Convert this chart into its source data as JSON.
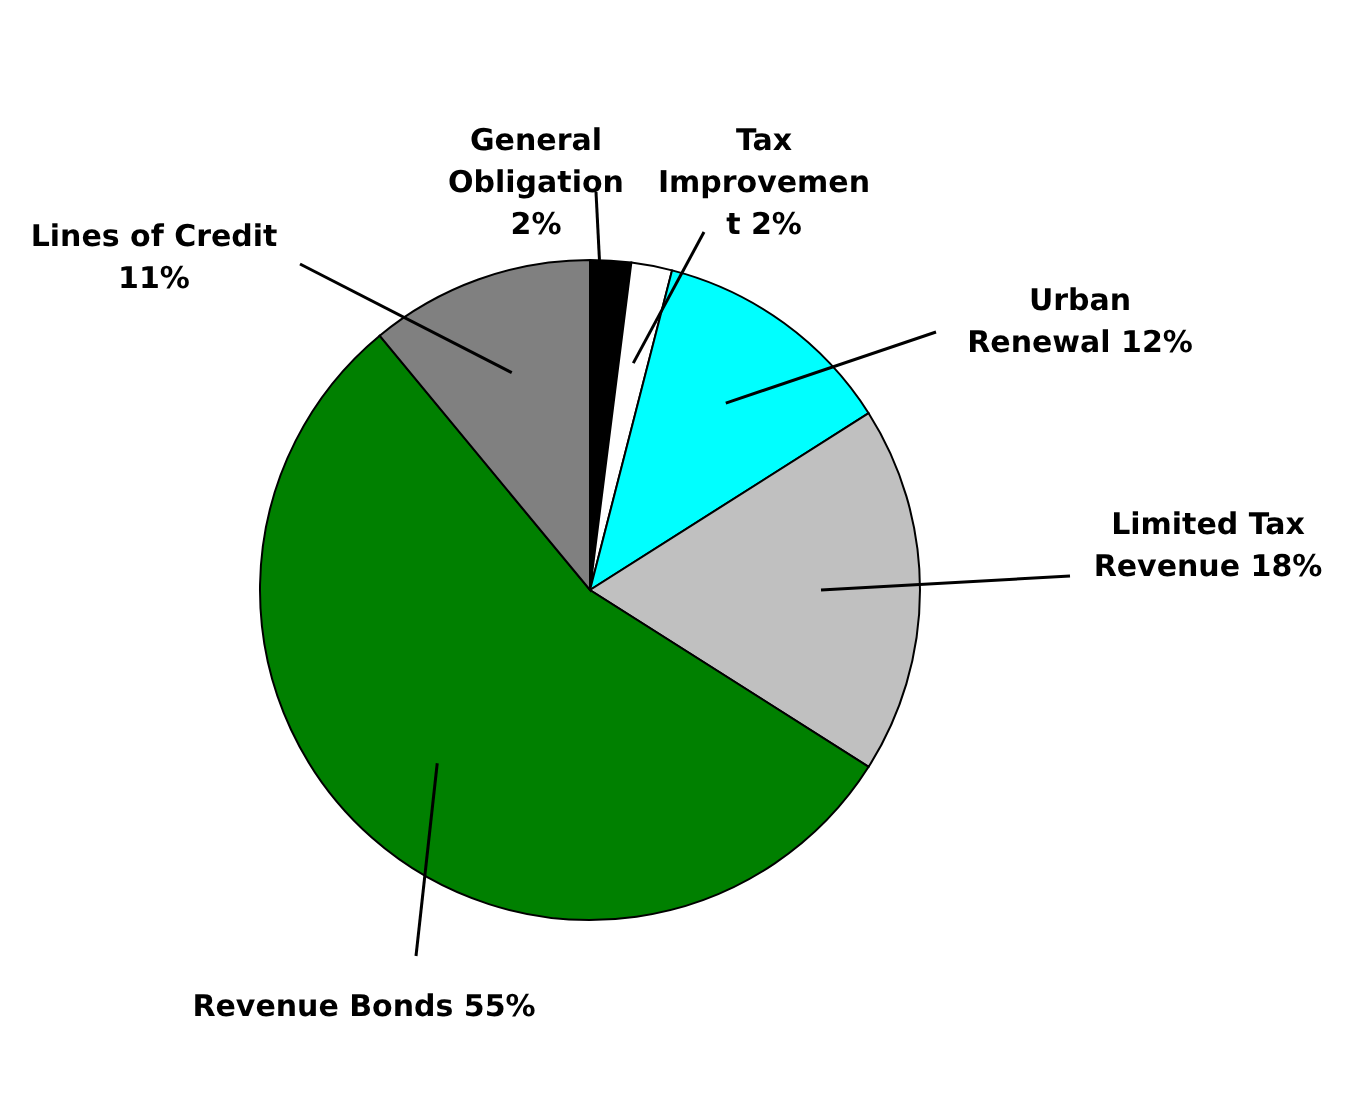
{
  "chart_data": {
    "type": "pie",
    "categories": [
      "General Obligation",
      "Tax Improvement",
      "Urban Renewal",
      "Limited Tax Revenue",
      "Revenue Bonds",
      "Lines of Credit"
    ],
    "values": [
      2,
      2,
      12,
      18,
      55,
      11
    ],
    "value_labels": [
      "2%",
      "2%",
      "12%",
      "18%",
      "55%",
      "11%"
    ],
    "colors": [
      "#000000",
      "#ffffff",
      "#00ffff",
      "#c0c0c0",
      "#008000",
      "#808080"
    ]
  }
}
